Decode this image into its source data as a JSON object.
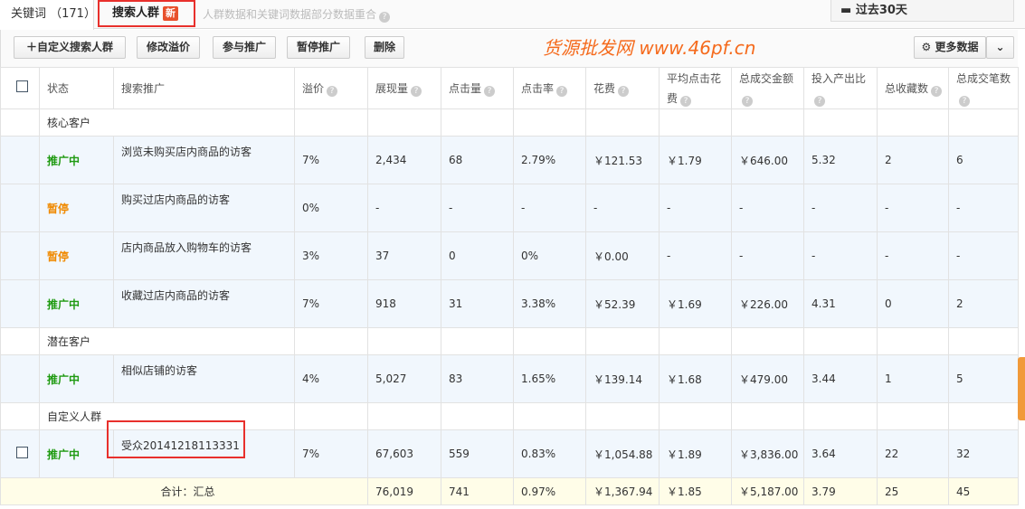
{
  "tabs": {
    "keywords": "关键词 （171）",
    "crowd": "搜索人群",
    "new_badge": "新",
    "hint": "人群数据和关键词数据部分数据重合"
  },
  "date_range": "过去30天",
  "toolbar": {
    "add": "自定义搜索人群",
    "edit": "修改溢价",
    "join": "参与推广",
    "pause": "暂停推广",
    "delete": "删除",
    "more": "更多数据"
  },
  "columns": [
    "状态",
    "搜索推广",
    "溢价",
    "展现量",
    "点击量",
    "点击率",
    "花费",
    "平均点击花费",
    "总成交金额",
    "投入产出比",
    "总收藏数",
    "总成交笔数"
  ],
  "groups": [
    {
      "label": "核心客户",
      "rows": [
        {
          "status": "推广中",
          "name": "浏览未购买店内商品的访客",
          "v": [
            "7%",
            "2,434",
            "68",
            "2.79%",
            "￥121.53",
            "￥1.79",
            "￥646.00",
            "5.32",
            "2",
            "6"
          ]
        },
        {
          "status": "暂停",
          "name": "购买过店内商品的访客",
          "v": [
            "0%",
            "-",
            "-",
            "-",
            "-",
            "-",
            "-",
            "-",
            "-",
            "-"
          ]
        },
        {
          "status": "暂停",
          "name": "店内商品放入购物车的访客",
          "v": [
            "3%",
            "37",
            "0",
            "0%",
            "￥0.00",
            "-",
            "-",
            "-",
            "-",
            "-"
          ]
        },
        {
          "status": "推广中",
          "name": "收藏过店内商品的访客",
          "v": [
            "7%",
            "918",
            "31",
            "3.38%",
            "￥52.39",
            "￥1.69",
            "￥226.00",
            "4.31",
            "0",
            "2"
          ]
        }
      ]
    },
    {
      "label": "潜在客户",
      "rows": [
        {
          "status": "推广中",
          "name": "相似店铺的访客",
          "v": [
            "4%",
            "5,027",
            "83",
            "1.65%",
            "￥139.14",
            "￥1.68",
            "￥479.00",
            "3.44",
            "1",
            "5"
          ]
        }
      ]
    },
    {
      "label": "自定义人群",
      "rows": [
        {
          "status": "推广中",
          "name": "受众20141218113331",
          "v": [
            "7%",
            "67,603",
            "559",
            "0.83%",
            "￥1,054.88",
            "￥1.89",
            "￥3,836.00",
            "3.64",
            "22",
            "32"
          ],
          "checkbox": true
        }
      ]
    }
  ],
  "total": {
    "label": "合计：汇总",
    "v": [
      "76,019",
      "741",
      "0.97%",
      "￥1,367.94",
      "￥1.85",
      "￥5,187.00",
      "3.79",
      "25",
      "45"
    ]
  },
  "watermark": "货源批发网 www.46pf.cn",
  "colors": {
    "active": "#1f9a11",
    "paused": "#f08a00",
    "highlight": "#e8302c"
  }
}
